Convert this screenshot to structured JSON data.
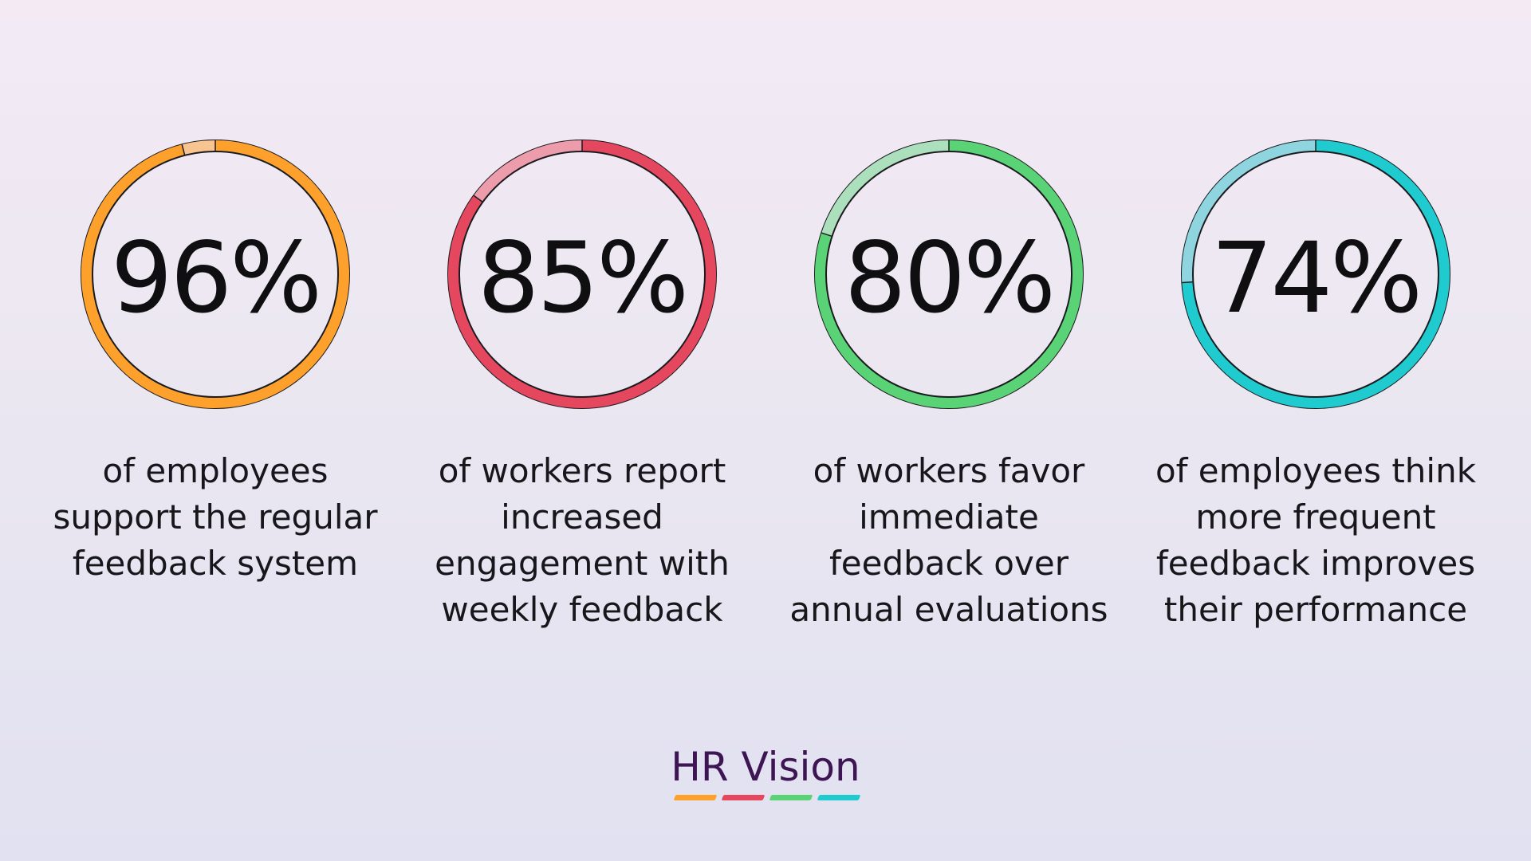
{
  "chart_data": [
    {
      "type": "pie",
      "value": 96,
      "label": "96%",
      "description": "of employees\nsupport the regular\nfeedback system",
      "color": "#fda12c",
      "remainder_color": "#f8c490"
    },
    {
      "type": "pie",
      "value": 85,
      "label": "85%",
      "description": "of workers report\nincreased\nengagement with\nweekly feedback",
      "color": "#e5475f",
      "remainder_color": "#ec9cab"
    },
    {
      "type": "pie",
      "value": 80,
      "label": "80%",
      "description": "of workers favor\nimmediate\nfeedback over\nannual evaluations",
      "color": "#5ad377",
      "remainder_color": "#acdfbc"
    },
    {
      "type": "pie",
      "value": 74,
      "label": "74%",
      "description": "of employees think\nmore frequent\nfeedback improves\ntheir performance",
      "color": "#1fcbcf",
      "remainder_color": "#8fd5df"
    }
  ],
  "brand": {
    "name": "HR Vision",
    "colors": [
      "#fda12c",
      "#e5475f",
      "#5ad377",
      "#1fcbcf"
    ]
  }
}
